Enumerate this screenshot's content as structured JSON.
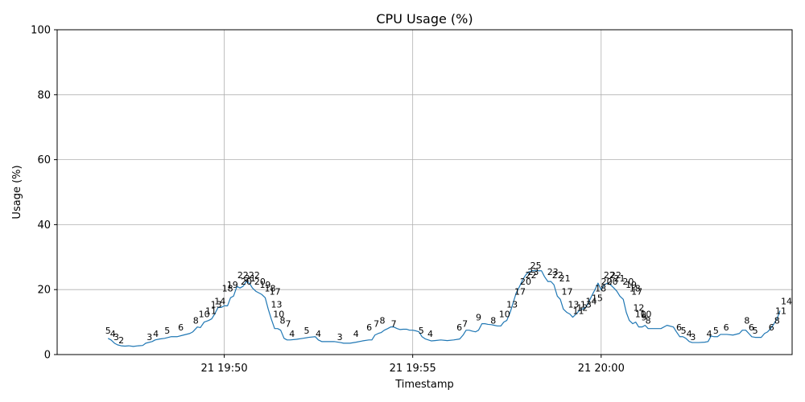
{
  "chart_data": {
    "type": "line",
    "title": "CPU Usage (%)",
    "xlabel": "Timestamp",
    "ylabel": "Usage (%)",
    "ylim": [
      0,
      100
    ],
    "yticks": [
      0,
      20,
      40,
      60,
      80,
      100
    ],
    "xticks": [
      {
        "t": 19.8333,
        "label": "21 19:50"
      },
      {
        "t": 24.8333,
        "label": "21 19:55"
      },
      {
        "t": 29.8333,
        "label": "21 20:00"
      }
    ],
    "x_unit": "minutes after 19:30 on day 21",
    "xlim": [
      15.4,
      34.9
    ],
    "grid": true,
    "legend": "none",
    "line_color": "#1f77b4",
    "series": [
      {
        "values": [
          [
            16.75,
            5
          ],
          [
            16.83,
            4.5
          ],
          [
            16.92,
            3.5
          ],
          [
            17.0,
            3
          ],
          [
            17.1,
            2.7
          ],
          [
            17.2,
            2.6
          ],
          [
            17.3,
            2.7
          ],
          [
            17.42,
            2.5
          ],
          [
            17.55,
            2.7
          ],
          [
            17.67,
            2.8
          ],
          [
            17.75,
            3.5
          ],
          [
            17.92,
            4
          ],
          [
            18.0,
            4.5
          ],
          [
            18.12,
            4.8
          ],
          [
            18.25,
            5
          ],
          [
            18.42,
            5.5
          ],
          [
            18.58,
            5.5
          ],
          [
            18.75,
            6
          ],
          [
            18.92,
            6.5
          ],
          [
            19.0,
            7
          ],
          [
            19.12,
            8.5
          ],
          [
            19.2,
            8.3
          ],
          [
            19.3,
            10
          ],
          [
            19.42,
            10.5
          ],
          [
            19.5,
            11
          ],
          [
            19.58,
            12.5
          ],
          [
            19.67,
            14.5
          ],
          [
            19.75,
            14.5
          ],
          [
            19.83,
            15
          ],
          [
            19.92,
            15
          ],
          [
            20.0,
            17.5
          ],
          [
            20.08,
            18
          ],
          [
            20.17,
            21
          ],
          [
            20.25,
            20.5
          ],
          [
            20.33,
            21
          ],
          [
            20.42,
            22.5
          ],
          [
            20.5,
            22
          ],
          [
            20.58,
            20.5
          ],
          [
            20.67,
            19.5
          ],
          [
            20.75,
            19
          ],
          [
            20.83,
            18.5
          ],
          [
            20.92,
            17.5
          ],
          [
            21.0,
            14
          ],
          [
            21.08,
            11
          ],
          [
            21.17,
            8
          ],
          [
            21.25,
            8
          ],
          [
            21.33,
            7.5
          ],
          [
            21.42,
            5
          ],
          [
            21.5,
            4.5
          ],
          [
            21.58,
            4.5
          ],
          [
            21.75,
            4.7
          ],
          [
            21.92,
            5
          ],
          [
            22.08,
            5.3
          ],
          [
            22.25,
            5.5
          ],
          [
            22.33,
            4.5
          ],
          [
            22.42,
            4
          ],
          [
            22.58,
            4
          ],
          [
            22.75,
            4
          ],
          [
            22.92,
            3.7
          ],
          [
            23.0,
            3.5
          ],
          [
            23.17,
            3.5
          ],
          [
            23.33,
            3.8
          ],
          [
            23.5,
            4.2
          ],
          [
            23.67,
            4.5
          ],
          [
            23.75,
            4.5
          ],
          [
            23.83,
            6
          ],
          [
            23.92,
            6.5
          ],
          [
            24.0,
            6.8
          ],
          [
            24.08,
            7.5
          ],
          [
            24.17,
            8
          ],
          [
            24.25,
            8.5
          ],
          [
            24.33,
            8.5
          ],
          [
            24.42,
            8
          ],
          [
            24.5,
            7.7
          ],
          [
            24.58,
            7.8
          ],
          [
            24.67,
            7.8
          ],
          [
            24.75,
            7.5
          ],
          [
            24.83,
            7.5
          ],
          [
            24.92,
            7.3
          ],
          [
            25.0,
            7
          ],
          [
            25.08,
            5.5
          ],
          [
            25.17,
            4.8
          ],
          [
            25.25,
            4.5
          ],
          [
            25.33,
            4.2
          ],
          [
            25.42,
            4.3
          ],
          [
            25.58,
            4.5
          ],
          [
            25.75,
            4.3
          ],
          [
            25.92,
            4.5
          ],
          [
            26.08,
            4.8
          ],
          [
            26.17,
            6
          ],
          [
            26.25,
            7.5
          ],
          [
            26.33,
            7.5
          ],
          [
            26.42,
            7.2
          ],
          [
            26.5,
            7
          ],
          [
            26.58,
            7.5
          ],
          [
            26.67,
            9.5
          ],
          [
            26.75,
            9.5
          ],
          [
            26.83,
            9.3
          ],
          [
            26.92,
            9.2
          ],
          [
            27.0,
            9
          ],
          [
            27.08,
            8.8
          ],
          [
            27.17,
            8.8
          ],
          [
            27.25,
            10
          ],
          [
            27.33,
            10.5
          ],
          [
            27.42,
            13
          ],
          [
            27.5,
            16
          ],
          [
            27.58,
            19
          ],
          [
            27.67,
            21
          ],
          [
            27.75,
            23
          ],
          [
            27.83,
            24.5
          ],
          [
            27.92,
            25.5
          ],
          [
            28.0,
            25.8
          ],
          [
            28.08,
            25.8
          ],
          [
            28.17,
            25.8
          ],
          [
            28.25,
            25.8
          ],
          [
            28.33,
            24
          ],
          [
            28.42,
            22.5
          ],
          [
            28.5,
            22.5
          ],
          [
            28.58,
            21.5
          ],
          [
            28.67,
            18
          ],
          [
            28.75,
            17
          ],
          [
            28.83,
            14
          ],
          [
            28.92,
            13
          ],
          [
            29.0,
            12.5
          ],
          [
            29.08,
            11.5
          ],
          [
            29.17,
            12.5
          ],
          [
            29.25,
            13.5
          ],
          [
            29.33,
            14
          ],
          [
            29.42,
            14.5
          ],
          [
            29.5,
            16
          ],
          [
            29.58,
            18
          ],
          [
            29.67,
            20
          ],
          [
            29.75,
            22
          ],
          [
            29.83,
            20
          ],
          [
            29.92,
            21.5
          ],
          [
            30.0,
            22
          ],
          [
            30.08,
            21.5
          ],
          [
            30.17,
            20.5
          ],
          [
            30.25,
            19.5
          ],
          [
            30.33,
            18
          ],
          [
            30.42,
            17
          ],
          [
            30.5,
            13
          ],
          [
            30.58,
            10.5
          ],
          [
            30.67,
            9.5
          ],
          [
            30.75,
            10
          ],
          [
            30.83,
            8.5
          ],
          [
            30.92,
            8.5
          ],
          [
            31.0,
            9
          ],
          [
            31.08,
            8
          ],
          [
            31.17,
            8
          ],
          [
            31.33,
            8
          ],
          [
            31.42,
            8
          ],
          [
            31.58,
            9
          ],
          [
            31.75,
            8.5
          ],
          [
            31.83,
            7
          ],
          [
            31.92,
            5.5
          ],
          [
            32.0,
            5.5
          ],
          [
            32.08,
            5
          ],
          [
            32.17,
            4
          ],
          [
            32.25,
            3.7
          ],
          [
            32.42,
            3.7
          ],
          [
            32.58,
            3.8
          ],
          [
            32.67,
            4
          ],
          [
            32.75,
            5.7
          ],
          [
            32.83,
            5.5
          ],
          [
            32.92,
            5.5
          ],
          [
            33.0,
            6.2
          ],
          [
            33.17,
            6.2
          ],
          [
            33.33,
            6
          ],
          [
            33.5,
            6.5
          ],
          [
            33.58,
            7.5
          ],
          [
            33.67,
            7.5
          ],
          [
            33.75,
            6.5
          ],
          [
            33.83,
            5.5
          ],
          [
            33.92,
            5.3
          ],
          [
            34.08,
            5.3
          ],
          [
            34.17,
            6.5
          ],
          [
            34.25,
            7
          ],
          [
            34.33,
            8
          ],
          [
            34.42,
            9.5
          ],
          [
            34.5,
            11
          ],
          [
            34.58,
            13.5
          ]
        ]
      }
    ],
    "data_labels": [
      {
        "t": 16.75,
        "v": 5,
        "text": "5"
      },
      {
        "t": 16.88,
        "v": 4,
        "text": "4"
      },
      {
        "t": 16.97,
        "v": 3,
        "text": "3"
      },
      {
        "t": 17.1,
        "v": 2,
        "text": "2"
      },
      {
        "t": 17.85,
        "v": 3,
        "text": "3"
      },
      {
        "t": 18.02,
        "v": 4,
        "text": "4"
      },
      {
        "t": 18.32,
        "v": 5,
        "text": "5"
      },
      {
        "t": 18.68,
        "v": 6,
        "text": "6"
      },
      {
        "t": 19.08,
        "v": 8,
        "text": "8"
      },
      {
        "t": 19.3,
        "v": 10,
        "text": "10"
      },
      {
        "t": 19.48,
        "v": 11,
        "text": "11"
      },
      {
        "t": 19.62,
        "v": 13,
        "text": "13"
      },
      {
        "t": 19.72,
        "v": 14,
        "text": "14"
      },
      {
        "t": 19.92,
        "v": 18,
        "text": "18"
      },
      {
        "t": 20.05,
        "v": 19,
        "text": "19"
      },
      {
        "t": 20.33,
        "v": 22,
        "text": "22"
      },
      {
        "t": 20.42,
        "v": 20,
        "text": "20"
      },
      {
        "t": 20.52,
        "v": 21,
        "text": "21"
      },
      {
        "t": 20.63,
        "v": 22,
        "text": "22"
      },
      {
        "t": 20.78,
        "v": 20,
        "text": "20"
      },
      {
        "t": 20.92,
        "v": 19,
        "text": "19"
      },
      {
        "t": 21.05,
        "v": 18,
        "text": "18"
      },
      {
        "t": 21.18,
        "v": 17,
        "text": "17"
      },
      {
        "t": 21.22,
        "v": 13,
        "text": "13"
      },
      {
        "t": 21.28,
        "v": 10,
        "text": "10"
      },
      {
        "t": 21.38,
        "v": 8,
        "text": "8"
      },
      {
        "t": 21.53,
        "v": 7,
        "text": "7"
      },
      {
        "t": 21.63,
        "v": 4,
        "text": "4"
      },
      {
        "t": 22.02,
        "v": 5,
        "text": "5"
      },
      {
        "t": 22.33,
        "v": 4,
        "text": "4"
      },
      {
        "t": 22.9,
        "v": 3,
        "text": "3"
      },
      {
        "t": 23.33,
        "v": 4,
        "text": "4"
      },
      {
        "t": 23.68,
        "v": 6,
        "text": "6"
      },
      {
        "t": 23.87,
        "v": 7,
        "text": "7"
      },
      {
        "t": 24.03,
        "v": 8,
        "text": "8"
      },
      {
        "t": 24.33,
        "v": 7,
        "text": "7"
      },
      {
        "t": 25.06,
        "v": 5,
        "text": "5"
      },
      {
        "t": 25.3,
        "v": 4,
        "text": "4"
      },
      {
        "t": 26.07,
        "v": 6,
        "text": "6"
      },
      {
        "t": 26.22,
        "v": 7,
        "text": "7"
      },
      {
        "t": 26.58,
        "v": 9,
        "text": "9"
      },
      {
        "t": 26.97,
        "v": 8,
        "text": "8"
      },
      {
        "t": 27.27,
        "v": 10,
        "text": "10"
      },
      {
        "t": 27.47,
        "v": 13,
        "text": "13"
      },
      {
        "t": 27.68,
        "v": 17,
        "text": "17"
      },
      {
        "t": 27.83,
        "v": 20,
        "text": "20"
      },
      {
        "t": 27.97,
        "v": 22,
        "text": "22"
      },
      {
        "t": 28.03,
        "v": 23,
        "text": "23"
      },
      {
        "t": 28.1,
        "v": 25,
        "text": "25"
      },
      {
        "t": 28.55,
        "v": 23,
        "text": "23"
      },
      {
        "t": 28.68,
        "v": 22,
        "text": "22"
      },
      {
        "t": 28.87,
        "v": 21,
        "text": "21"
      },
      {
        "t": 28.93,
        "v": 17,
        "text": "17"
      },
      {
        "t": 29.1,
        "v": 13,
        "text": "13"
      },
      {
        "t": 29.23,
        "v": 11,
        "text": "11"
      },
      {
        "t": 29.33,
        "v": 12,
        "text": "12"
      },
      {
        "t": 29.43,
        "v": 13,
        "text": "13"
      },
      {
        "t": 29.57,
        "v": 14,
        "text": "14"
      },
      {
        "t": 29.73,
        "v": 15,
        "text": "15"
      },
      {
        "t": 29.82,
        "v": 18,
        "text": "18"
      },
      {
        "t": 29.98,
        "v": 20,
        "text": "20"
      },
      {
        "t": 30.05,
        "v": 22,
        "text": "22"
      },
      {
        "t": 30.13,
        "v": 20,
        "text": "20"
      },
      {
        "t": 30.22,
        "v": 22,
        "text": "22"
      },
      {
        "t": 30.32,
        "v": 21,
        "text": "21"
      },
      {
        "t": 30.55,
        "v": 20,
        "text": "20"
      },
      {
        "t": 30.63,
        "v": 19,
        "text": "19"
      },
      {
        "t": 30.73,
        "v": 18,
        "text": "18"
      },
      {
        "t": 30.78,
        "v": 17,
        "text": "17"
      },
      {
        "t": 30.83,
        "v": 12,
        "text": "12"
      },
      {
        "t": 30.88,
        "v": 10,
        "text": "10"
      },
      {
        "t": 30.97,
        "v": 9,
        "text": "9"
      },
      {
        "t": 31.02,
        "v": 10,
        "text": "10"
      },
      {
        "t": 31.08,
        "v": 8,
        "text": "8"
      },
      {
        "t": 31.9,
        "v": 6,
        "text": "6"
      },
      {
        "t": 32.02,
        "v": 5,
        "text": "5"
      },
      {
        "t": 32.17,
        "v": 4,
        "text": "4"
      },
      {
        "t": 32.27,
        "v": 3,
        "text": "3"
      },
      {
        "t": 32.7,
        "v": 4,
        "text": "4"
      },
      {
        "t": 32.88,
        "v": 5,
        "text": "5"
      },
      {
        "t": 33.15,
        "v": 6,
        "text": "6"
      },
      {
        "t": 33.7,
        "v": 8,
        "text": "8"
      },
      {
        "t": 33.82,
        "v": 6,
        "text": "6"
      },
      {
        "t": 33.92,
        "v": 5,
        "text": "5"
      },
      {
        "t": 34.35,
        "v": 6,
        "text": "6"
      },
      {
        "t": 34.5,
        "v": 8,
        "text": "8"
      },
      {
        "t": 34.6,
        "v": 11,
        "text": "11"
      },
      {
        "t": 34.75,
        "v": 14,
        "text": "14"
      }
    ]
  }
}
